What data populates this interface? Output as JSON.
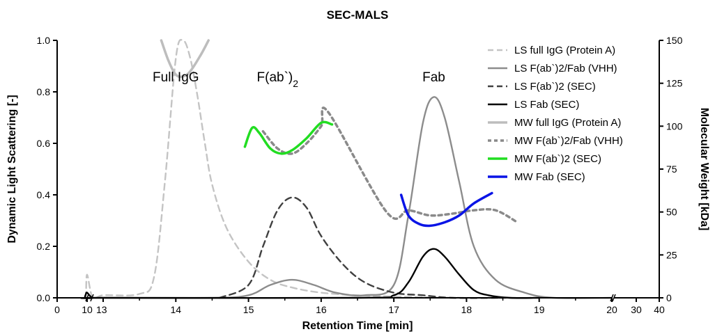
{
  "chart_data": {
    "type": "line",
    "title": "SEC-MALS",
    "xlabel": "Retention Time [min]",
    "ylabel_left": "Dynamic Light Scattering [-]",
    "ylabel_right": "Molecular Weight [kDa]",
    "ylim_left": [
      0,
      1.0
    ],
    "ylim_right": [
      0,
      150
    ],
    "x_axis_broken": true,
    "x_tick_labels": [
      "0",
      "10",
      "13",
      "14",
      "15",
      "16",
      "17",
      "18",
      "19",
      "20",
      "30",
      "40"
    ],
    "y_left_ticks": [
      "0.0",
      "0.2",
      "0.4",
      "0.6",
      "0.8",
      "1.0"
    ],
    "y_right_ticks": [
      "0",
      "25",
      "50",
      "75",
      "100",
      "125",
      "150"
    ],
    "annotations": [
      {
        "text": "Full IgG",
        "x": 14.0,
        "y": 0.86
      },
      {
        "text": "F(ab`)",
        "sub": "2",
        "x": 15.4,
        "y": 0.86
      },
      {
        "text": "Fab",
        "x": 17.55,
        "y": 0.86
      }
    ],
    "legend_position": "top-right",
    "series": [
      {
        "name": "LS full IgG (Protein A)",
        "axis": "left",
        "color": "#c4c4c4",
        "dash": "dashed",
        "x": [
          9.2,
          9.6,
          10.0,
          10.2,
          13.0,
          13.5,
          13.7,
          13.85,
          14.0,
          14.1,
          14.2,
          14.3,
          14.4,
          14.5,
          14.7,
          15.0,
          15.3,
          15.6,
          16.0,
          16.5,
          17.0,
          18.0,
          19.0
        ],
        "y": [
          0.0,
          0.01,
          0.09,
          0.0,
          0.01,
          0.015,
          0.08,
          0.45,
          0.93,
          1.0,
          0.93,
          0.78,
          0.6,
          0.44,
          0.27,
          0.14,
          0.07,
          0.04,
          0.02,
          0.01,
          0.005,
          0.0,
          0.0
        ]
      },
      {
        "name": "LS F(ab`)2/Fab (VHH)",
        "axis": "left",
        "color": "#8c8c8c",
        "dash": "solid",
        "x": [
          9.2,
          10.2,
          13.0,
          14.5,
          15.0,
          15.3,
          15.6,
          15.9,
          16.2,
          16.6,
          17.0,
          17.2,
          17.4,
          17.55,
          17.7,
          17.9,
          18.1,
          18.4,
          18.8,
          19.2,
          20.0
        ],
        "y": [
          0.0,
          0.0,
          0.0,
          0.0,
          0.01,
          0.05,
          0.07,
          0.05,
          0.02,
          0.01,
          0.05,
          0.32,
          0.68,
          0.78,
          0.7,
          0.45,
          0.2,
          0.07,
          0.02,
          0.0,
          0.0
        ]
      },
      {
        "name": "LS F(ab`)2 (SEC)",
        "axis": "left",
        "color": "#404040",
        "dash": "dashed",
        "x": [
          14.6,
          15.0,
          15.2,
          15.4,
          15.6,
          15.8,
          16.0,
          16.3,
          16.6,
          17.0,
          17.4,
          17.8,
          18.5
        ],
        "y": [
          0.0,
          0.05,
          0.2,
          0.34,
          0.39,
          0.35,
          0.24,
          0.13,
          0.06,
          0.02,
          0.01,
          0.0,
          0.0
        ]
      },
      {
        "name": "LS Fab (SEC)",
        "axis": "left",
        "color": "#000000",
        "dash": "solid",
        "x": [
          9.2,
          9.6,
          10.0,
          10.2,
          13.0,
          16.5,
          17.0,
          17.2,
          17.4,
          17.55,
          17.7,
          17.9,
          18.1,
          18.3,
          18.6,
          19.0
        ],
        "y": [
          0.0,
          0.015,
          0.02,
          0.0,
          0.0,
          0.0,
          0.01,
          0.06,
          0.16,
          0.19,
          0.16,
          0.09,
          0.03,
          0.01,
          0.0,
          0.0
        ]
      },
      {
        "name": "MW full IgG (Protein A)",
        "axis": "right",
        "color": "#bdbdbd",
        "dash": "solid",
        "x": [
          13.8,
          13.9,
          14.0,
          14.1,
          14.2,
          14.35,
          14.45
        ],
        "y": [
          150,
          138,
          130,
          129,
          132,
          142,
          150
        ]
      },
      {
        "name": "MW F(ab`)2/Fab (VHH)",
        "axis": "right",
        "color": "#8a8a8a",
        "dash": "dotted",
        "x": [
          15.2,
          15.4,
          15.6,
          15.8,
          16.0,
          16.1,
          16.9,
          17.2,
          17.5,
          17.8,
          18.1,
          18.4,
          18.7
        ],
        "y": [
          97,
          87,
          84,
          90,
          100,
          108,
          50,
          51,
          48,
          49,
          51,
          51,
          44
        ]
      },
      {
        "name": "MW F(ab`)2 (SEC)",
        "axis": "right",
        "color": "#22dd22",
        "dash": "solid",
        "x": [
          14.95,
          15.05,
          15.15,
          15.3,
          15.45,
          15.6,
          15.8,
          16.0,
          16.15
        ],
        "y": [
          88,
          99,
          96,
          87,
          84,
          86,
          93,
          102,
          101
        ]
      },
      {
        "name": "MW Fab (SEC)",
        "axis": "right",
        "color": "#0a14e6",
        "dash": "solid",
        "x": [
          17.1,
          17.2,
          17.35,
          17.5,
          17.7,
          17.9,
          18.1,
          18.35
        ],
        "y": [
          60,
          48,
          43,
          42,
          44,
          48,
          55,
          61
        ]
      }
    ]
  }
}
